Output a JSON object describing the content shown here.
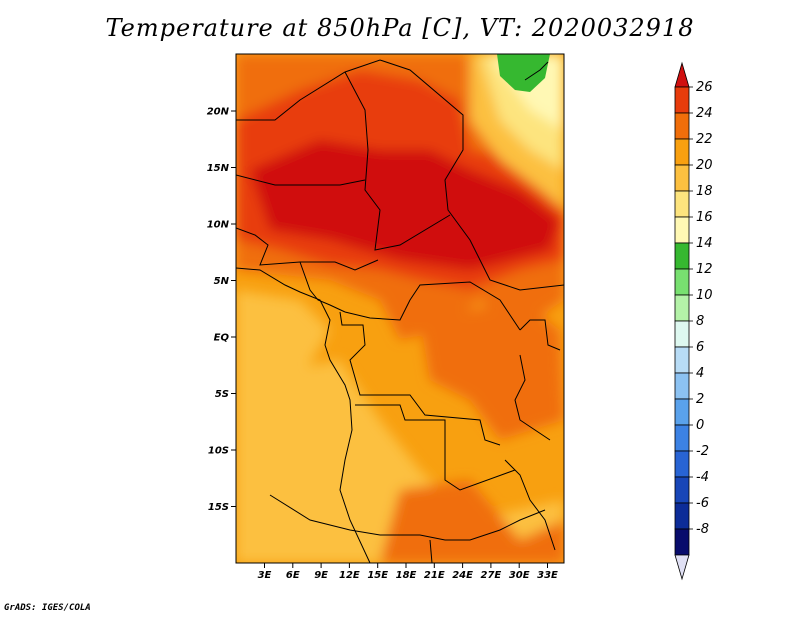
{
  "title": "Temperature at 850hPa [C], VT: 2020032918",
  "credit": "GrADS: IGES/COLA",
  "lon_labels": [
    "3E",
    "6E",
    "9E",
    "12E",
    "15E",
    "18E",
    "21E",
    "24E",
    "27E",
    "30E",
    "33E"
  ],
  "lat_labels": [
    "20N",
    "15N",
    "10N",
    "5N",
    "EQ",
    "5S",
    "10S",
    "15S"
  ],
  "colorbar": {
    "labels": [
      "26",
      "24",
      "22",
      "20",
      "18",
      "16",
      "14",
      "12",
      "10",
      "8",
      "6",
      "4",
      "2",
      "0",
      "-2",
      "-4",
      "-6",
      "-8"
    ],
    "colors": [
      "#d01010",
      "#e83c0c",
      "#f06e0a",
      "#f8a010",
      "#fcc040",
      "#fde47e",
      "#fff8b4",
      "#36b830",
      "#78e070",
      "#b4f2a8",
      "#def8f0",
      "#b8dcf6",
      "#8cc2f2",
      "#5aa2ec",
      "#3c82e4",
      "#2864d4",
      "#1846b8",
      "#0c2c98",
      "#080c6c",
      "#e0e0f4"
    ]
  }
}
